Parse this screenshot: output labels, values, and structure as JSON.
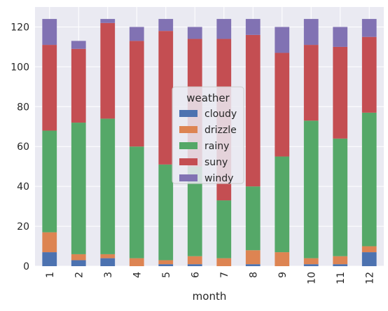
{
  "chart_data": {
    "type": "bar",
    "stacked": true,
    "title": "",
    "xlabel": "month",
    "ylabel": "",
    "categories": [
      "1",
      "2",
      "3",
      "4",
      "5",
      "6",
      "7",
      "8",
      "9",
      "10",
      "11",
      "12"
    ],
    "ylim": [
      0,
      130
    ],
    "yticks": [
      0,
      20,
      40,
      60,
      80,
      100,
      120
    ],
    "grid": true,
    "legend": {
      "title": "weather",
      "placement": "center"
    },
    "series": [
      {
        "name": "cloudy",
        "color": "#4c72b0",
        "values": [
          7,
          3,
          4,
          0,
          1,
          1,
          0,
          1,
          0,
          1,
          1,
          7
        ]
      },
      {
        "name": "drizzle",
        "color": "#dd8452",
        "values": [
          10,
          3,
          2,
          4,
          2,
          4,
          4,
          7,
          7,
          3,
          4,
          3
        ]
      },
      {
        "name": "rainy",
        "color": "#55a868",
        "values": [
          51,
          66,
          68,
          56,
          48,
          45,
          29,
          32,
          48,
          69,
          59,
          67
        ]
      },
      {
        "name": "suny",
        "color": "#c44e52",
        "values": [
          43,
          37,
          48,
          53,
          67,
          64,
          81,
          76,
          52,
          38,
          46,
          38
        ]
      },
      {
        "name": "windy",
        "color": "#8172b3",
        "values": [
          13,
          4,
          2,
          7,
          6,
          6,
          10,
          8,
          13,
          13,
          10,
          9
        ]
      }
    ]
  },
  "style": {
    "plot_background": "#eaeaf2",
    "grid_color": "#ffffff"
  }
}
